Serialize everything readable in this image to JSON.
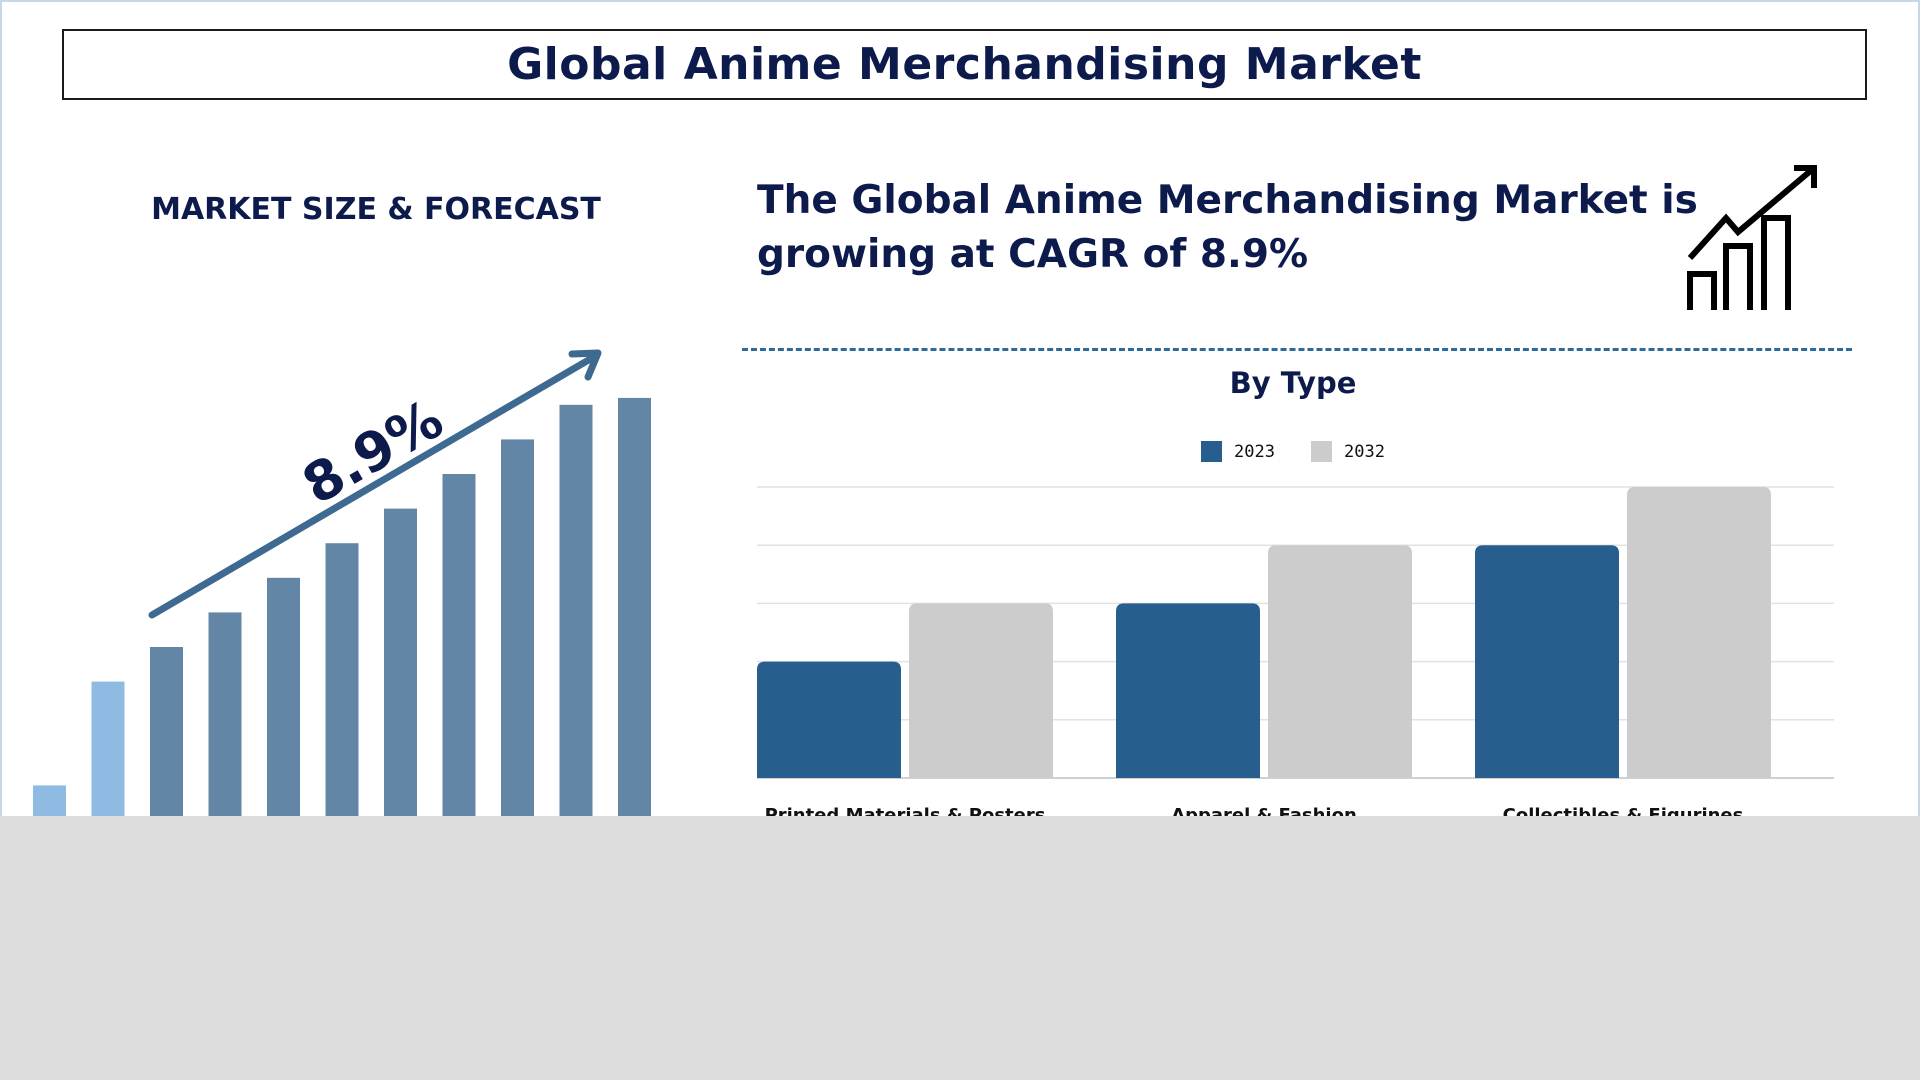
{
  "title": "Global Anime Merchandising Market",
  "left_panel": {
    "heading": "MARKET SIZE & FORECAST",
    "cagr_label": "8.9%"
  },
  "right_panel": {
    "headline": "The Global Anime Merchandising Market is growing at CAGR of 8.9%",
    "icon": "growth-chart-icon",
    "section_title": "By Type"
  },
  "colors": {
    "navy": "#0d1b4c",
    "series_2023": "#285e8e",
    "series_2032": "#cccccc",
    "forecast_bars": "#6386a6",
    "early_bars": "#8fbbe2",
    "arrow": "#3e6a92"
  },
  "chart_data": [
    {
      "type": "bar",
      "title": "By Type",
      "categories": [
        "Printed Materials & Posters",
        "Apparel & Fashion",
        "Collectibles & Figurines"
      ],
      "series": [
        {
          "name": "2023",
          "values": [
            2,
            3,
            4
          ]
        },
        {
          "name": "2032",
          "values": [
            3,
            4,
            5
          ]
        }
      ],
      "ylim": [
        0,
        5
      ],
      "grid": true,
      "legend": "top-center"
    },
    {
      "type": "bar",
      "values": [
        1,
        4,
        5,
        6,
        7,
        8,
        9,
        10,
        11,
        12,
        12.2
      ],
      "annotation": "8.9%",
      "grid": false
    }
  ]
}
